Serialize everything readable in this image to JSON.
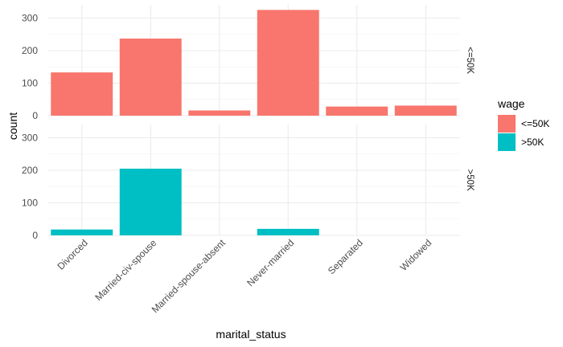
{
  "chart_data": {
    "type": "bar",
    "facet_layout": "rows",
    "xlabel": "marital_status",
    "ylabel": "count",
    "categories": [
      "Divorced",
      "Married-civ-spouse",
      "Married-spouse-absent",
      "Never-married",
      "Separated",
      "Widowed"
    ],
    "ylim": [
      0,
      340
    ],
    "yticks": [
      0,
      100,
      200,
      300
    ],
    "grid": true,
    "legend": {
      "title": "wage",
      "position": "right",
      "entries": [
        {
          "label": "<=50K",
          "color": "#F8766D"
        },
        {
          "label": ">50K",
          "color": "#00BFC4"
        }
      ]
    },
    "panels": [
      {
        "strip": "<=50K",
        "color": "#F8766D",
        "values": [
          133,
          237,
          16,
          325,
          28,
          31
        ]
      },
      {
        "strip": ">50K",
        "color": "#00BFC4",
        "values": [
          18,
          205,
          0,
          20,
          0,
          0
        ]
      }
    ]
  }
}
